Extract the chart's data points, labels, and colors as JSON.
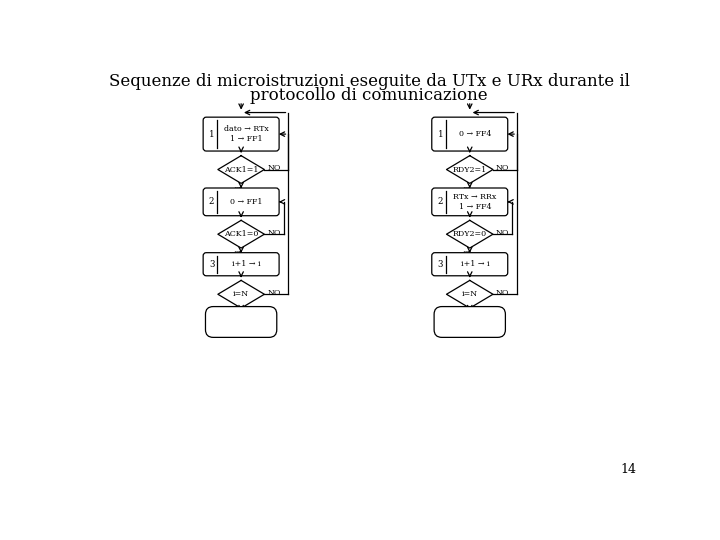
{
  "title_line1": "Sequenze di microistruzioni eseguite da UTx e URx durante il",
  "title_line2": "protocollo di comunicazione",
  "title_fontsize": 12,
  "bg_color": "#ffffff",
  "page_number": "14",
  "left_flow": {
    "box1_text": "dato → RTx\n1 → FF1",
    "diamond1_text": "ACK1=1",
    "box2_text": "0 → FF1",
    "diamond2_text": "ACK1=0",
    "box3_text": "i+1 → i",
    "diamond3_text": "i=N"
  },
  "right_flow": {
    "box1_text": "0 → FF4",
    "diamond1_text": "RDY2=1",
    "box2_text": "RTx → RRx\n1 → FF4",
    "diamond2_text": "RDY2=0",
    "box3_text": "i+1 → i",
    "diamond3_text": "i=N"
  }
}
